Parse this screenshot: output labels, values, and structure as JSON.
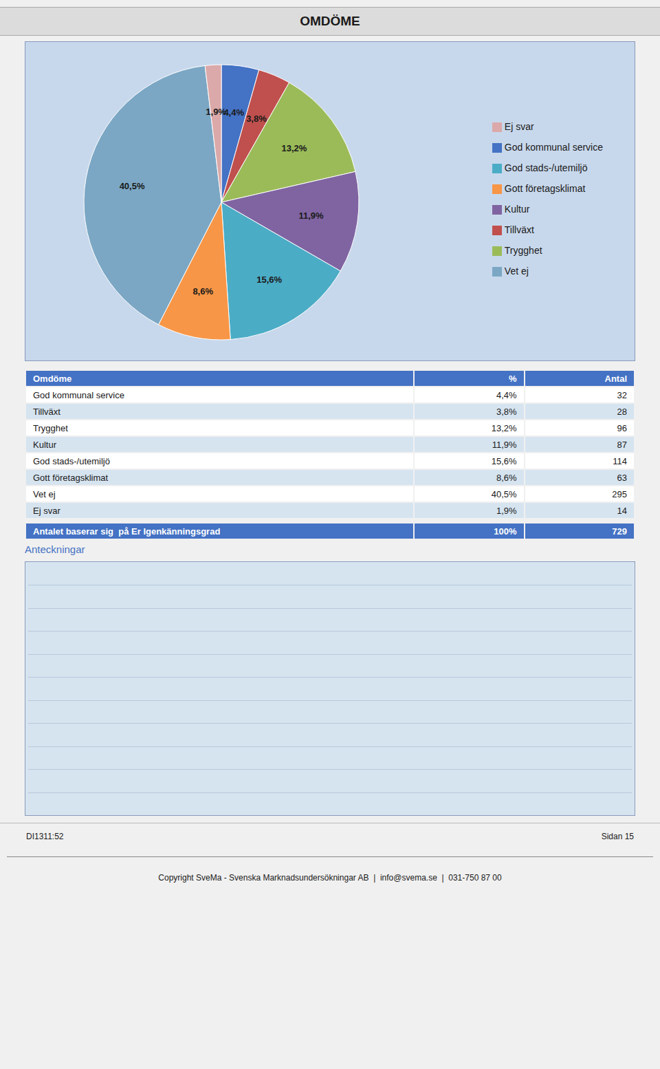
{
  "chart_data": [
    {
      "type": "pie",
      "title": "OMDÖME",
      "categories": [
        "God kommunal service",
        "Tillväxt",
        "Trygghet",
        "Kultur",
        "God stads-/utemiljö",
        "Gott företagsklimat",
        "Vet ej",
        "Ej svar"
      ],
      "values": [
        4.4,
        3.8,
        13.2,
        11.9,
        15.6,
        8.6,
        40.5,
        1.9
      ],
      "value_labels": [
        "4,4%",
        "3,8%",
        "13,2%",
        "11,9%",
        "15,6%",
        "8,6%",
        "40,5%",
        "1,9%"
      ],
      "colors": [
        "#4472C4",
        "#C0504D",
        "#9BBB59",
        "#8064A2",
        "#4BACC6",
        "#F79646",
        "#7BA7C4",
        "#DBA9A9"
      ],
      "data_labels": true,
      "legend": "right",
      "annotations": [
        "Anteckningar",
        "DI1311:52",
        "Sidan 15",
        "Copyright SveMa - Svenska Marknadsundersökningar AB  |  info@svema.se  |  031-750 87 00"
      ]
    },
    {
      "type": "table",
      "columns": [
        "Omdöme",
        "%",
        "Antal"
      ],
      "rows": [
        [
          "God kommunal service",
          "4,4%",
          "32"
        ],
        [
          "Tillväxt",
          "3,8%",
          "28"
        ],
        [
          "Trygghet",
          "13,2%",
          "96"
        ],
        [
          "Kultur",
          "11,9%",
          "87"
        ],
        [
          "God stads-/utemiljö",
          "15,6%",
          "114"
        ],
        [
          "Gott företagsklimat",
          "8,6%",
          "63"
        ],
        [
          "Vet ej",
          "40,5%",
          "295"
        ],
        [
          "Ej svar",
          "1,9%",
          "14"
        ],
        [
          "Antalet baserar sig  på Er Igenkänningsgrad",
          "100%",
          "729"
        ]
      ]
    }
  ]
}
